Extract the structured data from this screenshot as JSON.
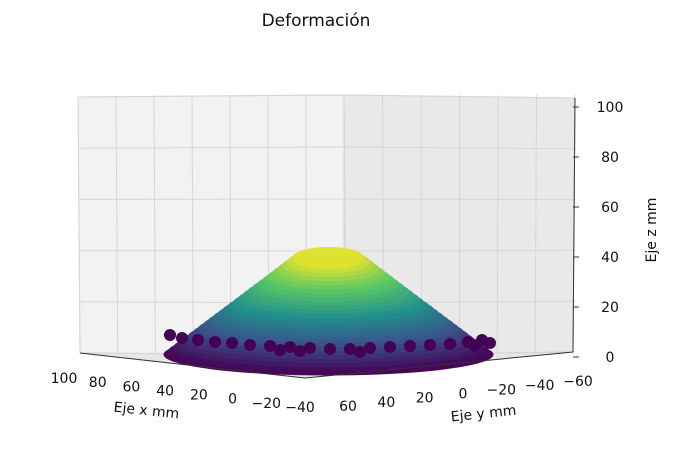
{
  "chart_data": {
    "type": "surface3d",
    "title": "Deformación",
    "xlabel": "Eje x mm",
    "ylabel": "Eje y mm",
    "zlabel": "Eje z mm",
    "xlim": [
      -40,
      100
    ],
    "ylim": [
      -60,
      60
    ],
    "zlim": [
      0,
      100
    ],
    "x_ticks": [
      {
        "value": 100,
        "label": "100"
      },
      {
        "value": 80,
        "label": "80"
      },
      {
        "value": 60,
        "label": "60"
      },
      {
        "value": 40,
        "label": "40"
      },
      {
        "value": 20,
        "label": "20"
      },
      {
        "value": 0,
        "label": "0"
      },
      {
        "value": -20,
        "label": "−20"
      },
      {
        "value": -40,
        "label": "−40"
      }
    ],
    "y_ticks": [
      {
        "value": 60,
        "label": "60"
      },
      {
        "value": 40,
        "label": "40"
      },
      {
        "value": 20,
        "label": "20"
      },
      {
        "value": 0,
        "label": "0"
      },
      {
        "value": -20,
        "label": "−20"
      },
      {
        "value": -40,
        "label": "−40"
      },
      {
        "value": -60,
        "label": "−60"
      }
    ],
    "z_ticks": [
      {
        "value": 100,
        "label": "100"
      },
      {
        "value": 80,
        "label": "80"
      },
      {
        "value": 60,
        "label": "60"
      },
      {
        "value": 40,
        "label": "40"
      },
      {
        "value": 20,
        "label": "20"
      },
      {
        "value": 0,
        "label": "0"
      }
    ],
    "colormap": [
      "#440154",
      "#3b528b",
      "#21918c",
      "#5ec962",
      "#fde725"
    ],
    "surface": {
      "shape": "dome",
      "center": {
        "x": 30,
        "y": 0
      },
      "peak_z": 38,
      "base_z": 0,
      "extent_x": 70,
      "extent_y": 60
    },
    "grid": true
  }
}
